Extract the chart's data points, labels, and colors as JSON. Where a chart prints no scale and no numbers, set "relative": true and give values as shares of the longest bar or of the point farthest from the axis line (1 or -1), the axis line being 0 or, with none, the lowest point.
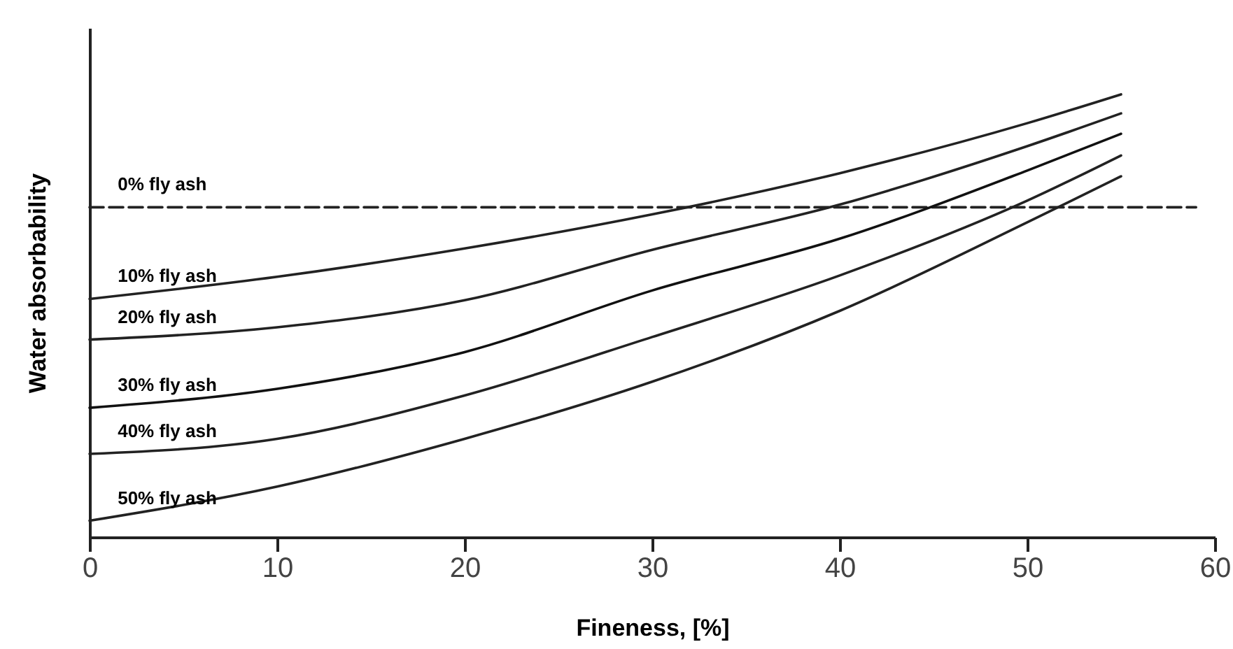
{
  "chart_data": {
    "type": "line",
    "xlabel": "Fineness, [%]",
    "ylabel": "Water absorbability",
    "relative": true,
    "xlim": [
      0,
      60
    ],
    "xticks": [
      0,
      10,
      20,
      30,
      40,
      50,
      60
    ],
    "grid": false,
    "legend": false,
    "marker": "none",
    "series": [
      {
        "name": "0% fly ash",
        "color": "#222222",
        "line_style": "dashed",
        "x": [
          0,
          59
        ],
        "values": [
          0.745,
          0.745
        ]
      },
      {
        "name": "10% fly ash",
        "color": "#222222",
        "line_style": "solid",
        "x": [
          0,
          10,
          20,
          30,
          40,
          50,
          55
        ],
        "values": [
          0.538,
          0.588,
          0.652,
          0.729,
          0.822,
          0.935,
          1
        ]
      },
      {
        "name": "20% fly ash",
        "color": "#222222",
        "line_style": "solid",
        "x": [
          0,
          10,
          20,
          30,
          40,
          50,
          55
        ],
        "values": [
          0.446,
          0.474,
          0.535,
          0.649,
          0.751,
          0.883,
          0.957
        ]
      },
      {
        "name": "30% fly ash",
        "color": "#111111",
        "line_style": "solid",
        "x": [
          0,
          10,
          20,
          30,
          40,
          50,
          55
        ],
        "values": [
          0.292,
          0.335,
          0.418,
          0.557,
          0.674,
          0.828,
          0.911
        ]
      },
      {
        "name": "40% fly ash",
        "color": "#222222",
        "line_style": "solid",
        "x": [
          0,
          10,
          20,
          30,
          40,
          50,
          55
        ],
        "values": [
          0.188,
          0.222,
          0.32,
          0.452,
          0.591,
          0.76,
          0.862
        ]
      },
      {
        "name": "50% fly ash",
        "color": "#222222",
        "line_style": "solid",
        "x": [
          0,
          10,
          20,
          30,
          40,
          50,
          55
        ],
        "values": [
          0.037,
          0.114,
          0.222,
          0.351,
          0.511,
          0.711,
          0.815
        ]
      }
    ]
  }
}
